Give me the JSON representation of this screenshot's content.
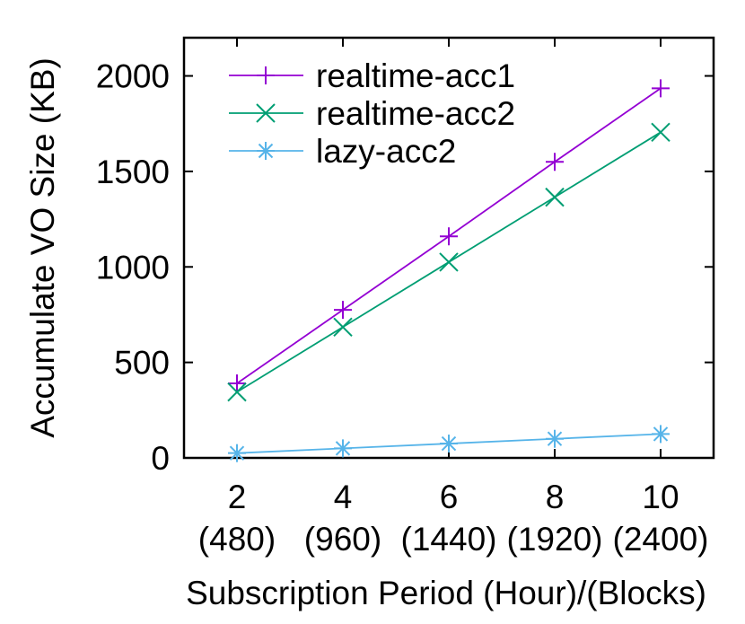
{
  "chart_data": {
    "type": "line",
    "title": "",
    "xlabel": "Subscription Period (Hour)/(Blocks)",
    "ylabel": "Accumulate VO Size (KB)",
    "x": [
      2,
      4,
      6,
      8,
      10
    ],
    "x_tick_labels": [
      {
        "value": 2,
        "line1": "2",
        "line2": "(480)"
      },
      {
        "value": 4,
        "line1": "4",
        "line2": "(960)"
      },
      {
        "value": 6,
        "line1": "6",
        "line2": "(1440)"
      },
      {
        "value": 8,
        "line1": "8",
        "line2": "(1920)"
      },
      {
        "value": 10,
        "line1": "10",
        "line2": "(2400)"
      }
    ],
    "xlim": [
      1,
      11
    ],
    "ylim": [
      0,
      2200
    ],
    "y_ticks": [
      0,
      500,
      1000,
      1500,
      2000
    ],
    "y_tick_labels": [
      "0",
      "500",
      "1000",
      "1500",
      "2000"
    ],
    "grid": false,
    "legend_position": "top-left",
    "series": [
      {
        "name": "realtime-acc1",
        "color": "#9400d3",
        "marker": "plus",
        "values": [
          390,
          775,
          1160,
          1550,
          1935
        ]
      },
      {
        "name": "realtime-acc2",
        "color": "#009e73",
        "marker": "cross",
        "values": [
          345,
          685,
          1025,
          1365,
          1705
        ]
      },
      {
        "name": "lazy-acc2",
        "color": "#56b4e9",
        "marker": "star",
        "values": [
          25,
          50,
          75,
          100,
          125
        ]
      }
    ]
  }
}
